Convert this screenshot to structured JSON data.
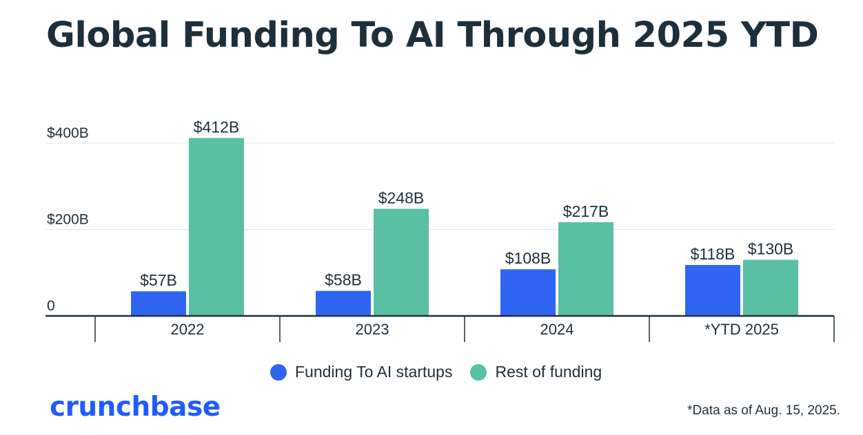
{
  "title": "Global Funding To AI Through 2025 YTD",
  "footnote": "*Data as of Aug. 15, 2025.",
  "brand": "crunchbase",
  "colors": {
    "ai": "#2f65f2",
    "rest": "#59bfa5",
    "text": "#1e2f3c",
    "brand": "#1f5bff",
    "grid": "#e3e6e8",
    "axis": "#1e2f3c"
  },
  "chart_data": {
    "type": "bar",
    "title": "Global Funding To AI Through 2025 YTD",
    "categories": [
      "2022",
      "2023",
      "2024",
      "*YTD 2025"
    ],
    "series": [
      {
        "name": "Funding To AI startups",
        "values": [
          57,
          58,
          108,
          118
        ],
        "labels": [
          "$57B",
          "$58B",
          "$108B",
          "$118B"
        ],
        "color": "#2f65f2"
      },
      {
        "name": "Rest of funding",
        "values": [
          412,
          248,
          217,
          130
        ],
        "labels": [
          "$412B",
          "$248B",
          "$217B",
          "$130B"
        ],
        "color": "#59bfa5"
      }
    ],
    "yticks": [
      {
        "value": 0,
        "label": "0"
      },
      {
        "value": 200,
        "label": "$200B"
      },
      {
        "value": 400,
        "label": "$400B"
      }
    ],
    "ylim": [
      0,
      400
    ],
    "unit": "$B",
    "grid": true,
    "legend": "bottom"
  }
}
